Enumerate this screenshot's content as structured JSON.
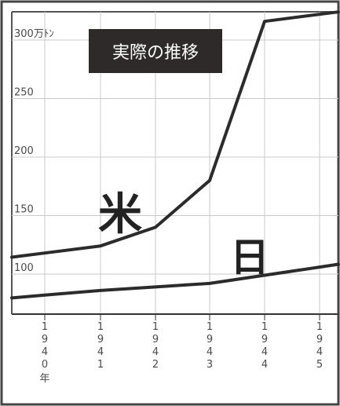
{
  "chart_data": {
    "type": "line",
    "title": "実際の推移",
    "xlabel": "",
    "ylabel": "",
    "x": [
      "1940",
      "1941",
      "1942",
      "1943",
      "1944",
      "1945"
    ],
    "year_suffix": "年",
    "x_tick_digits": [
      [
        "1",
        "9",
        "4",
        "0"
      ],
      [
        "1",
        "9",
        "4",
        "1"
      ],
      [
        "1",
        "9",
        "4",
        "2"
      ],
      [
        "1",
        "9",
        "4",
        "3"
      ],
      [
        "1",
        "9",
        "4",
        "4"
      ],
      [
        "1",
        "9",
        "4",
        "5"
      ]
    ],
    "ylim": [
      70,
      320
    ],
    "y_ticks": [
      100,
      150,
      200,
      250,
      300
    ],
    "y_tick_labels": [
      "100",
      "150",
      "200",
      "250",
      "300万ﾄﾝ"
    ],
    "grid": true,
    "series": [
      {
        "name": "米",
        "values": [
          118,
          124,
          140,
          180,
          316,
          322
        ]
      },
      {
        "name": "日",
        "values": [
          82,
          86,
          89,
          92,
          99,
          106
        ]
      }
    ],
    "colors": {
      "line": "#2b2b2b",
      "grid": "#c8c8c8",
      "title_bg": "#2e2a2a",
      "axis": "#333333"
    }
  }
}
